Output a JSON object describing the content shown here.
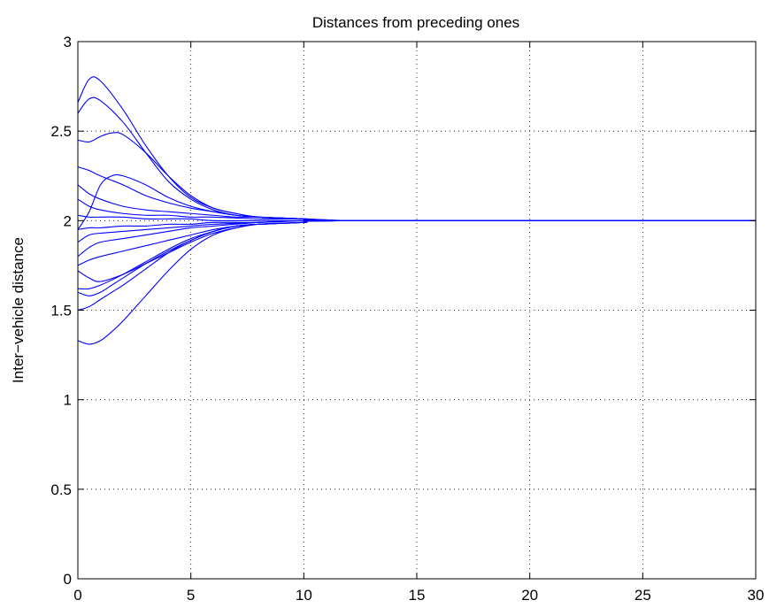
{
  "chart_data": {
    "type": "line",
    "title": "Distances from preceding ones",
    "xlabel": "",
    "ylabel": "Inter−vehicle distance",
    "xlim": [
      0,
      30
    ],
    "ylim": [
      0,
      3
    ],
    "xticks": [
      0,
      5,
      10,
      15,
      20,
      25,
      30
    ],
    "yticks": [
      0,
      0.5,
      1,
      1.5,
      2,
      2.5,
      3
    ],
    "xtick_labels": [
      "0",
      "5",
      "10",
      "15",
      "20",
      "25",
      "30"
    ],
    "ytick_labels": [
      "0",
      "0.5",
      "1",
      "1.5",
      "2",
      "2.5",
      "3"
    ],
    "grid": true,
    "line_color": "#0000ff",
    "series": [
      {
        "x": [
          0,
          0.5,
          1,
          2,
          3,
          4,
          5,
          6,
          7,
          8,
          10,
          12,
          15,
          30
        ],
        "y": [
          2.66,
          2.79,
          2.78,
          2.62,
          2.42,
          2.25,
          2.13,
          2.07,
          2.04,
          2.02,
          2.01,
          2.0,
          2.0,
          2.0
        ]
      },
      {
        "x": [
          0,
          0.5,
          1,
          2,
          3,
          4,
          5,
          6,
          7,
          8,
          10,
          12,
          15,
          30
        ],
        "y": [
          2.6,
          2.68,
          2.67,
          2.55,
          2.38,
          2.22,
          2.12,
          2.06,
          2.03,
          2.02,
          2.01,
          2.0,
          2.0,
          2.0
        ]
      },
      {
        "x": [
          0,
          0.5,
          1,
          1.5,
          2,
          3,
          4,
          5,
          6,
          7,
          8,
          10,
          12,
          30
        ],
        "y": [
          2.45,
          2.44,
          2.47,
          2.49,
          2.48,
          2.38,
          2.25,
          2.14,
          2.07,
          2.04,
          2.02,
          2.01,
          2.0,
          2.0
        ]
      },
      {
        "x": [
          0,
          0.5,
          1,
          2,
          3,
          4,
          5,
          6,
          7,
          8,
          10,
          12,
          30
        ],
        "y": [
          2.3,
          2.28,
          2.25,
          2.2,
          2.14,
          2.1,
          2.07,
          2.05,
          2.03,
          2.02,
          2.01,
          2.0,
          2.0
        ]
      },
      {
        "x": [
          0,
          0.5,
          1,
          1.5,
          2,
          3,
          4,
          5,
          6,
          7,
          8,
          10,
          12,
          30
        ],
        "y": [
          1.95,
          2.05,
          2.2,
          2.25,
          2.25,
          2.2,
          2.13,
          2.08,
          2.05,
          2.03,
          2.02,
          2.01,
          2.0,
          2.0
        ]
      },
      {
        "x": [
          0,
          0.5,
          1,
          2,
          3,
          4,
          5,
          6,
          7,
          8,
          10,
          12,
          30
        ],
        "y": [
          2.2,
          2.15,
          2.12,
          2.08,
          2.06,
          2.05,
          2.04,
          2.03,
          2.02,
          2.02,
          2.01,
          2.0,
          2.0
        ]
      },
      {
        "x": [
          0,
          0.5,
          1,
          2,
          3,
          4,
          5,
          6,
          8,
          10,
          12,
          30
        ],
        "y": [
          2.12,
          2.08,
          2.06,
          2.04,
          2.03,
          2.03,
          2.02,
          2.02,
          2.01,
          2.01,
          2.0,
          2.0
        ]
      },
      {
        "x": [
          0,
          0.5,
          1,
          2,
          3,
          4,
          5,
          6,
          8,
          10,
          12,
          30
        ],
        "y": [
          2.03,
          2.02,
          2.02,
          2.02,
          2.01,
          2.01,
          2.01,
          2.0,
          2.0,
          2.0,
          2.0,
          2.0
        ]
      },
      {
        "x": [
          0,
          0.5,
          1,
          2,
          3,
          4,
          5,
          6,
          8,
          10,
          12,
          30
        ],
        "y": [
          1.95,
          1.96,
          1.96,
          1.97,
          1.97,
          1.98,
          1.98,
          1.99,
          1.99,
          2.0,
          2.0,
          2.0
        ]
      },
      {
        "x": [
          0,
          0.5,
          1,
          2,
          3,
          4,
          5,
          6,
          8,
          10,
          12,
          30
        ],
        "y": [
          1.88,
          1.92,
          1.93,
          1.94,
          1.95,
          1.96,
          1.97,
          1.98,
          1.99,
          2.0,
          2.0,
          2.0
        ]
      },
      {
        "x": [
          0,
          0.5,
          1,
          2,
          3,
          4,
          5,
          6,
          8,
          10,
          12,
          30
        ],
        "y": [
          1.8,
          1.85,
          1.88,
          1.9,
          1.92,
          1.94,
          1.96,
          1.97,
          1.99,
          2.0,
          2.0,
          2.0
        ]
      },
      {
        "x": [
          0,
          0.5,
          1,
          2,
          3,
          4,
          5,
          6,
          7,
          8,
          10,
          12,
          30
        ],
        "y": [
          1.75,
          1.78,
          1.8,
          1.83,
          1.86,
          1.89,
          1.92,
          1.95,
          1.97,
          1.98,
          1.99,
          2.0,
          2.0
        ]
      },
      {
        "x": [
          0,
          0.5,
          1,
          2,
          3,
          4,
          5,
          6,
          7,
          8,
          10,
          12,
          30
        ],
        "y": [
          1.72,
          1.68,
          1.66,
          1.7,
          1.76,
          1.82,
          1.88,
          1.93,
          1.96,
          1.98,
          1.99,
          2.0,
          2.0
        ]
      },
      {
        "x": [
          0,
          0.5,
          1,
          2,
          3,
          4,
          5,
          6,
          7,
          8,
          10,
          12,
          30
        ],
        "y": [
          1.62,
          1.62,
          1.64,
          1.7,
          1.77,
          1.84,
          1.9,
          1.94,
          1.97,
          1.98,
          1.99,
          2.0,
          2.0
        ]
      },
      {
        "x": [
          0,
          0.5,
          1,
          1.5,
          2,
          3,
          4,
          5,
          6,
          7,
          8,
          10,
          12,
          30
        ],
        "y": [
          1.6,
          1.58,
          1.6,
          1.64,
          1.68,
          1.76,
          1.83,
          1.89,
          1.94,
          1.97,
          1.98,
          1.99,
          2.0,
          2.0
        ]
      },
      {
        "x": [
          0,
          0.5,
          1,
          1.5,
          2,
          3,
          4,
          5,
          6,
          7,
          8,
          10,
          12,
          30
        ],
        "y": [
          1.5,
          1.52,
          1.56,
          1.6,
          1.64,
          1.73,
          1.82,
          1.89,
          1.94,
          1.97,
          1.98,
          1.99,
          2.0,
          2.0
        ]
      },
      {
        "x": [
          0,
          0.5,
          1,
          1.5,
          2,
          3,
          4,
          5,
          6,
          7,
          8,
          10,
          12,
          30
        ],
        "y": [
          1.33,
          1.31,
          1.33,
          1.38,
          1.44,
          1.58,
          1.72,
          1.84,
          1.92,
          1.96,
          1.98,
          1.99,
          2.0,
          2.0
        ]
      }
    ]
  }
}
